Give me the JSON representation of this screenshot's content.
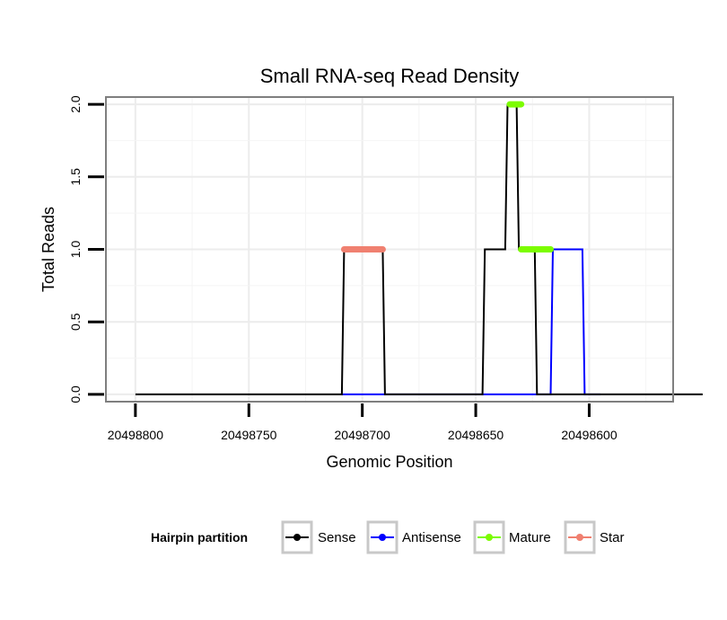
{
  "chart_data": {
    "type": "line",
    "title": "Small RNA-seq Read Density",
    "xlabel": "Genomic Position",
    "ylabel": "Total Reads",
    "x_reversed": true,
    "xlim": [
      20498813,
      20498563
    ],
    "ylim": [
      -0.05,
      2.05
    ],
    "x_ticks": [
      20498800,
      20498750,
      20498700,
      20498650,
      20498600
    ],
    "x_tick_labels": [
      "20498800",
      "20498750",
      "20498700",
      "20498650",
      "20498600"
    ],
    "y_ticks": [
      0.0,
      0.5,
      1.0,
      1.5,
      2.0
    ],
    "y_tick_labels": [
      "0.0",
      "0.5",
      "1.0",
      "1.5",
      "2.0"
    ],
    "legend": {
      "title": "Hairpin partition",
      "placement": "bottom",
      "entries": [
        "Sense",
        "Antisense",
        "Mature",
        "Star"
      ]
    },
    "series": [
      {
        "name": "Sense",
        "color": "#000000",
        "x": [
          20498800,
          20498709,
          20498708,
          20498691,
          20498690,
          20498647,
          20498646,
          20498637,
          20498636,
          20498632,
          20498631,
          20498624,
          20498623,
          20498611,
          20498610,
          20498600,
          20498550
        ],
        "y": [
          0,
          0,
          1,
          1,
          0,
          0,
          1,
          1,
          2,
          2,
          1,
          1,
          0,
          0,
          0,
          0,
          0
        ]
      },
      {
        "name": "Antisense",
        "color": "#0000ff",
        "x": [
          20498709,
          20498623,
          20498617,
          20498616,
          20498603,
          20498602,
          20498595
        ],
        "y": [
          0,
          0,
          0,
          1,
          1,
          0,
          0
        ]
      },
      {
        "name": "Mature",
        "color": "#7cfc00",
        "segments": [
          {
            "x": [
              20498635,
              20498630
            ],
            "y": [
              2,
              2
            ]
          },
          {
            "x": [
              20498630,
              20498617
            ],
            "y": [
              1,
              1
            ]
          }
        ]
      },
      {
        "name": "Star",
        "color": "#f08070",
        "segments": [
          {
            "x": [
              20498708,
              20498691
            ],
            "y": [
              1,
              1
            ]
          }
        ]
      }
    ]
  }
}
